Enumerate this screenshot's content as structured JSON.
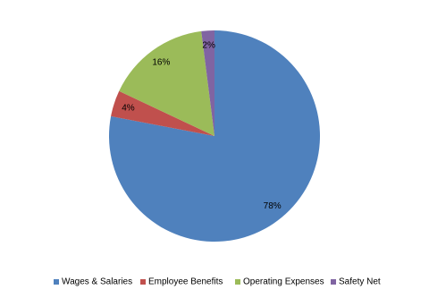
{
  "chart_data": {
    "type": "pie",
    "categories": [
      "Wages & Salaries",
      "Employee Benefits",
      "Operating Expenses",
      "Safety Net"
    ],
    "values": [
      78,
      4,
      16,
      2
    ],
    "value_labels": [
      "78%",
      "4%",
      "16%",
      "2%"
    ],
    "colors": [
      "#4f81bd",
      "#c0504d",
      "#9bbb59",
      "#8064a2"
    ],
    "legend": "bottom"
  }
}
